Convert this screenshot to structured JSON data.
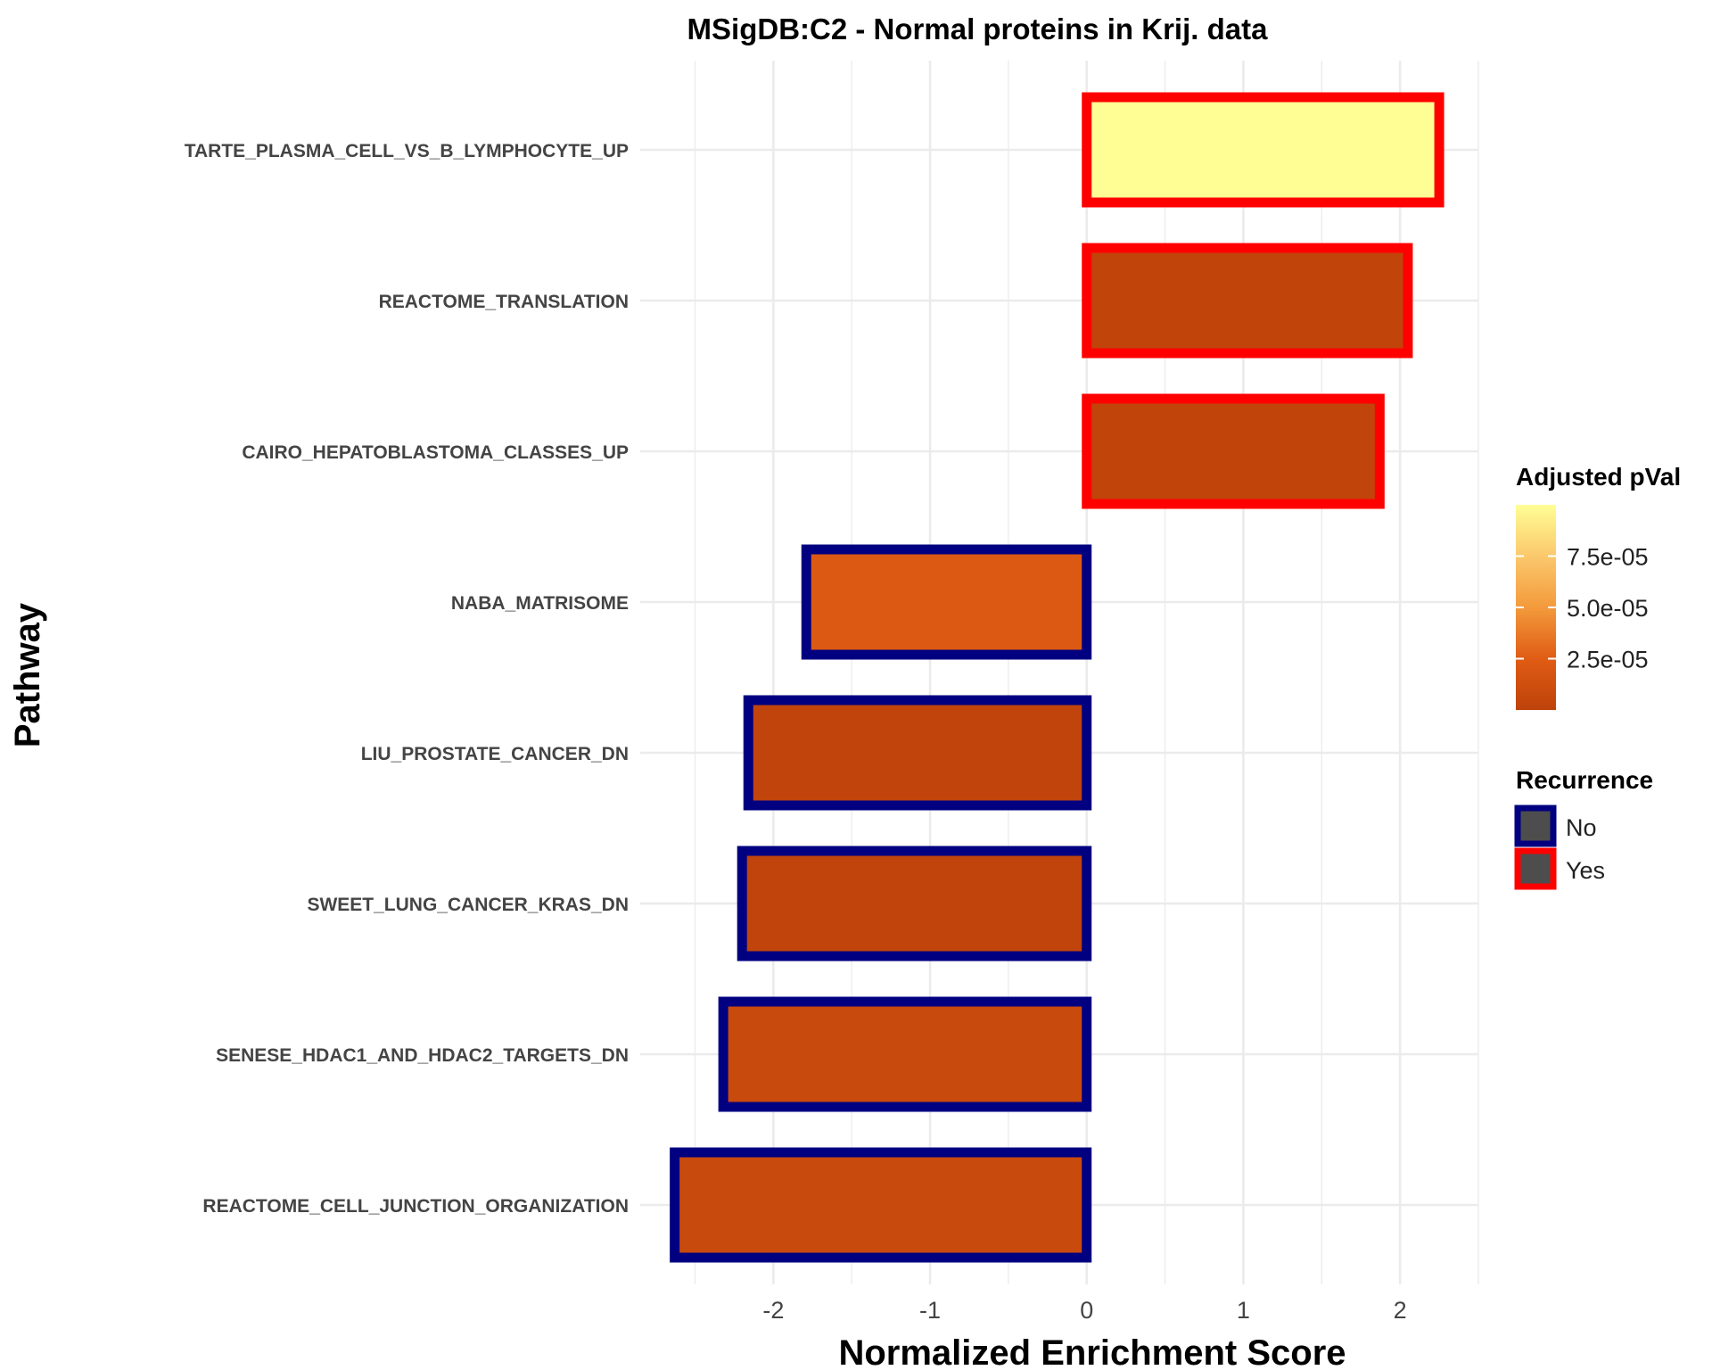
{
  "chart_data": {
    "type": "bar",
    "orientation": "horizontal",
    "title": "MSigDB:C2 - Normal proteins in Krij. data",
    "xlabel": "Normalized Enrichment Score",
    "ylabel": "Pathway",
    "xlim": [
      -2.85,
      2.5
    ],
    "xticks": [
      -2,
      -1,
      0,
      1,
      2
    ],
    "xtick_labels": [
      "-2",
      "-1",
      "0",
      "1",
      "2"
    ],
    "grid": true,
    "categories": [
      "TARTE_PLASMA_CELL_VS_B_LYMPHOCYTE_UP",
      "REACTOME_TRANSLATION",
      "CAIRO_HEPATOBLASTOMA_CLASSES_UP",
      "NABA_MATRISOME",
      "LIU_PROSTATE_CANCER_DN",
      "SWEET_LUNG_CANCER_KRAS_DN",
      "SENESE_HDAC1_AND_HDAC2_TARGETS_DN",
      "REACTOME_CELL_JUNCTION_ORGANIZATION"
    ],
    "values": [
      2.25,
      2.05,
      1.87,
      -1.79,
      -2.16,
      -2.2,
      -2.32,
      -2.63
    ],
    "adjusted_pval": [
      0.0001,
      2e-06,
      2e-06,
      2.2e-05,
      1.5e-06,
      1.5e-06,
      8e-06,
      8e-06
    ],
    "recurrence": [
      "Yes",
      "Yes",
      "Yes",
      "No",
      "No",
      "No",
      "No",
      "No"
    ],
    "legend_fill": {
      "title": "Adjusted pVal",
      "ticks": [
        7.5e-05,
        5e-05,
        2.5e-05
      ],
      "tick_labels": [
        "7.5e-05",
        "5.0e-05",
        "2.5e-05"
      ],
      "range": [
        0,
        0.0001
      ],
      "color_low": "#BE420A",
      "color_high": "#FFFE95",
      "placement": "right"
    },
    "legend_outline": {
      "title": "Recurrence",
      "entries": [
        {
          "label": "No",
          "color": "#000080"
        },
        {
          "label": "Yes",
          "color": "#FF0000"
        }
      ],
      "placement": "right"
    }
  }
}
